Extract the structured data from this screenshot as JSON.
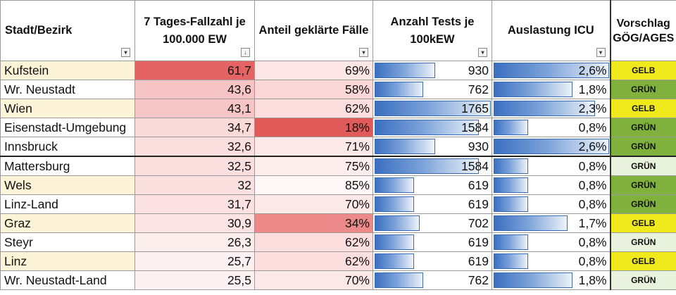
{
  "headers": {
    "city": "Stadt/Bezirk",
    "incidence": "7 Tages-Fallzahl je 100.000 EW",
    "cleared": "Anteil geklärte Fälle",
    "tests": "Anzahl Tests je 100kEW",
    "icu": "Auslastung ICU",
    "recommendation": "Vorschlag GÖG/AGES"
  },
  "rows": [
    {
      "city": "Kufstein",
      "incidence": "61,7",
      "cleared": "69%",
      "tests": "930",
      "icu": "2,6%",
      "badge": "GELB",
      "test_fraction": 0.53,
      "icu_fraction": 1.0,
      "city_bg": "#fdf3d6",
      "inc_bg": "#e46464",
      "clr_bg": "#fde6e6",
      "badge_bg": "#f0ea1c"
    },
    {
      "city": "Wr. Neustadt",
      "incidence": "43,6",
      "cleared": "58%",
      "tests": "762",
      "icu": "1,8%",
      "badge": "GRÜN",
      "test_fraction": 0.43,
      "icu_fraction": 0.69,
      "city_bg": "#ffffff",
      "inc_bg": "#f6c4c4",
      "clr_bg": "#fbd7d7",
      "badge_bg": "#7fb13c"
    },
    {
      "city": "Wien",
      "incidence": "43,1",
      "cleared": "62%",
      "tests": "1765",
      "icu": "2,3%",
      "badge": "GELB",
      "test_fraction": 1.0,
      "icu_fraction": 0.88,
      "city_bg": "#fdf3d6",
      "inc_bg": "#f6c6c6",
      "clr_bg": "#fcdede",
      "badge_bg": "#f0ea1c"
    },
    {
      "city": "Eisenstadt-Umgebung",
      "incidence": "34,7",
      "cleared": "18%",
      "tests": "1584",
      "icu": "0,8%",
      "badge": "GRÜN",
      "test_fraction": 0.9,
      "icu_fraction": 0.31,
      "city_bg": "#ffffff",
      "inc_bg": "#fad9d9",
      "clr_bg": "#e05a5a",
      "badge_bg": "#7fb13c"
    },
    {
      "city": "Innsbruck",
      "incidence": "32,6",
      "cleared": "71%",
      "tests": "930",
      "icu": "2,6%",
      "badge": "GRÜN",
      "test_fraction": 0.53,
      "icu_fraction": 1.0,
      "city_bg": "#ffffff",
      "inc_bg": "#fbdede",
      "clr_bg": "#fde8e8",
      "badge_bg": "#7fb13c"
    },
    {
      "city": "Mattersburg",
      "incidence": "32,5",
      "cleared": "75%",
      "tests": "1584",
      "icu": "0,8%",
      "badge": "GRÜN",
      "test_fraction": 0.9,
      "icu_fraction": 0.31,
      "city_bg": "#ffffff",
      "inc_bg": "#fbdfdf",
      "clr_bg": "#feeded",
      "badge_bg": "#e9f2dc"
    },
    {
      "city": "Wels",
      "incidence": "32",
      "cleared": "85%",
      "tests": "619",
      "icu": "0,8%",
      "badge": "GRÜN",
      "test_fraction": 0.35,
      "icu_fraction": 0.31,
      "city_bg": "#fdf3d6",
      "inc_bg": "#fbe0e0",
      "clr_bg": "#fff7f7",
      "badge_bg": "#7fb13c"
    },
    {
      "city": "Linz-Land",
      "incidence": "31,7",
      "cleared": "70%",
      "tests": "619",
      "icu": "0,8%",
      "badge": "GRÜN",
      "test_fraction": 0.35,
      "icu_fraction": 0.31,
      "city_bg": "#ffffff",
      "inc_bg": "#fbe1e1",
      "clr_bg": "#fde8e8",
      "badge_bg": "#7fb13c"
    },
    {
      "city": "Graz",
      "incidence": "30,9",
      "cleared": "34%",
      "tests": "702",
      "icu": "1,7%",
      "badge": "GELB",
      "test_fraction": 0.4,
      "icu_fraction": 0.65,
      "city_bg": "#fdf3d6",
      "inc_bg": "#fbe3e3",
      "clr_bg": "#ec8a8a",
      "badge_bg": "#f0ea1c"
    },
    {
      "city": "Steyr",
      "incidence": "26,3",
      "cleared": "62%",
      "tests": "619",
      "icu": "0,8%",
      "badge": "GRÜN",
      "test_fraction": 0.35,
      "icu_fraction": 0.31,
      "city_bg": "#ffffff",
      "inc_bg": "#fdeeee",
      "clr_bg": "#fcdede",
      "badge_bg": "#e9f2dc"
    },
    {
      "city": "Linz",
      "incidence": "25,7",
      "cleared": "62%",
      "tests": "619",
      "icu": "0,8%",
      "badge": "GELB",
      "test_fraction": 0.35,
      "icu_fraction": 0.31,
      "city_bg": "#fdf3d6",
      "inc_bg": "#fdf0f0",
      "clr_bg": "#fcdede",
      "badge_bg": "#f0ea1c"
    },
    {
      "city": "Wr. Neustadt-Land",
      "incidence": "25,5",
      "cleared": "70%",
      "tests": "762",
      "icu": "1,8%",
      "badge": "GRÜN",
      "test_fraction": 0.43,
      "icu_fraction": 0.69,
      "city_bg": "#ffffff",
      "inc_bg": "#fdf1f1",
      "clr_bg": "#fde8e8",
      "badge_bg": "#e9f2dc"
    }
  ]
}
